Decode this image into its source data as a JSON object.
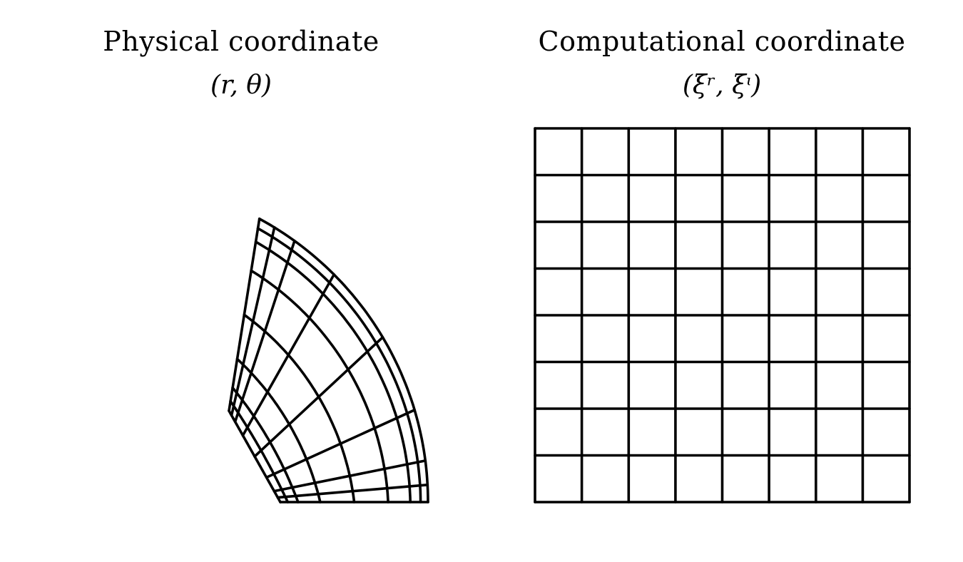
{
  "physical_panel": {
    "title": "Physical coordinate",
    "variables": "(r, θ)"
  },
  "computational_panel": {
    "title": "Computational coordinate",
    "variables": "(ξʳ, ξᶥ)"
  },
  "physical_grid": {
    "radial_fractions": [
      0.0,
      0.05,
      0.12,
      0.27,
      0.5,
      0.73,
      0.88,
      0.95,
      1.0
    ],
    "angle_fractions": [
      0.0,
      0.05,
      0.12,
      0.27,
      0.5,
      0.73,
      0.88,
      0.95,
      1.0
    ],
    "angle_span_degrees": 60
  },
  "computational_grid": {
    "cells_x": 8,
    "cells_y": 8
  },
  "colors": {
    "line": "#000000",
    "background": "#ffffff"
  }
}
